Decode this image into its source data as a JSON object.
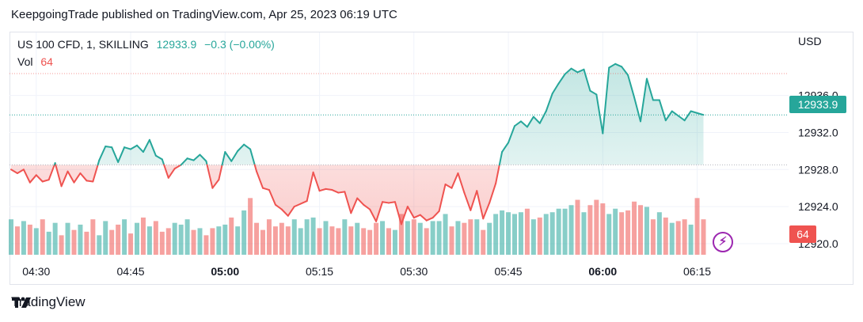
{
  "header": {
    "publish_line": "KeepgoingTrade published on TradingView.com, Apr 25, 2023 06:19 UTC"
  },
  "legend": {
    "symbol": "US 100 CFD, 1, SKILLING",
    "last": "12933.9",
    "change": "−0.3 (−0.00%)",
    "vol_label": "Vol",
    "vol_value": "64"
  },
  "axis": {
    "currency": "USD",
    "price_badge": "12933.9",
    "volume_badge": "64"
  },
  "footer": {
    "brand": "TradingView"
  },
  "colors": {
    "up": "#26a69a",
    "down": "#ef5350",
    "grid": "#f0f3fa"
  },
  "chart_data": {
    "type": "line",
    "title": "US 100 CFD, 1, SKILLING",
    "y_ticks": [
      12920.0,
      12924.0,
      12928.0,
      12932.0,
      12936.0
    ],
    "y_tick_labels": [
      "12920.0",
      "12924.0",
      "12928.0",
      "12932.0",
      "12936.0"
    ],
    "ylim": [
      12918.8,
      12942.8
    ],
    "x_ticks": [
      "04:30",
      "04:45",
      "05:00",
      "05:15",
      "05:30",
      "05:45",
      "06:00",
      "06:15"
    ],
    "x_ticks_bold": [
      false,
      false,
      true,
      false,
      false,
      false,
      true,
      false
    ],
    "baseline": 12928.5,
    "last_price": 12933.9,
    "series": [
      {
        "start_time": "04:26",
        "interval_minutes": 1,
        "values": [
          12928.0,
          12927.6,
          12928.0,
          12926.6,
          12927.4,
          12926.7,
          12926.9,
          12928.7,
          12926.2,
          12927.8,
          12926.6,
          12927.6,
          12926.8,
          12926.7,
          12929.0,
          12930.5,
          12930.4,
          12928.8,
          12930.4,
          12930.2,
          12930.6,
          12929.9,
          12931.2,
          12929.5,
          12929.1,
          12927.1,
          12928.1,
          12928.5,
          12929.2,
          12929.0,
          12929.6,
          12928.9,
          12926.0,
          12926.9,
          12929.9,
          12928.9,
          12930.0,
          12930.7,
          12930.2,
          12927.8,
          12926.0,
          12925.8,
          12924.2,
          12923.7,
          12923.0,
          12924.0,
          12924.3,
          12924.6,
          12927.7,
          12925.7,
          12925.9,
          12925.8,
          12925.5,
          12925.6,
          12923.3,
          12924.9,
          12924.2,
          12923.7,
          12922.4,
          12924.5,
          12924.4,
          12924.5,
          12922.1,
          12924.0,
          12922.8,
          12923.1,
          12922.5,
          12922.8,
          12923.5,
          12926.4,
          12926.0,
          12927.6,
          12925.5,
          12923.6,
          12925.7,
          12922.7,
          12924.4,
          12926.5,
          12929.9,
          12930.9,
          12932.7,
          12933.2,
          12932.6,
          12933.7,
          12933.0,
          12934.3,
          12936.2,
          12937.3,
          12938.3,
          12938.9,
          12938.5,
          12938.8,
          12936.5,
          12936.1,
          12931.9,
          12939.0,
          12939.4,
          12939.1,
          12938.2,
          12935.8,
          12933.2,
          12937.8,
          12935.5,
          12935.5,
          12933.3,
          12934.3,
          12933.8,
          12933.3,
          12934.3,
          12934.1,
          12933.9
        ]
      },
      {
        "name": "Vol",
        "values": [
          40,
          32,
          38,
          34,
          30,
          40,
          26,
          36,
          22,
          36,
          28,
          34,
          26,
          40,
          22,
          38,
          28,
          34,
          40,
          24,
          36,
          42,
          32,
          38,
          26,
          30,
          36,
          34,
          40,
          28,
          30,
          22,
          30,
          32,
          34,
          42,
          32,
          50,
          64,
          36,
          28,
          40,
          32,
          36,
          32,
          40,
          30,
          40,
          42,
          30,
          38,
          32,
          30,
          40,
          32,
          36,
          30,
          28,
          36,
          38,
          30,
          28,
          46,
          38,
          40,
          36,
          30,
          38,
          38,
          46,
          32,
          38,
          36,
          40,
          40,
          28,
          36,
          46,
          50,
          48,
          46,
          48,
          52,
          40,
          42,
          46,
          48,
          52,
          52,
          56,
          62,
          48,
          56,
          62,
          58,
          46,
          52,
          48,
          50,
          60,
          56,
          54,
          40,
          48,
          42,
          36,
          38,
          40,
          34,
          64,
          40
        ]
      }
    ]
  }
}
